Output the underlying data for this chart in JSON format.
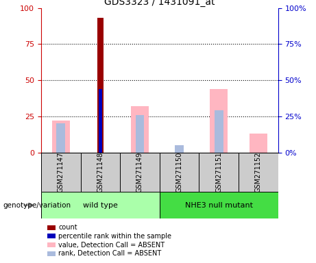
{
  "title": "GDS3323 / 1431091_at",
  "samples": [
    "GSM271147",
    "GSM271148",
    "GSM271149",
    "GSM271150",
    "GSM271151",
    "GSM271152"
  ],
  "count_values": [
    0,
    93,
    0,
    0,
    0,
    0
  ],
  "percentile_rank_values": [
    0,
    44,
    0,
    0,
    0,
    0
  ],
  "absent_value_values": [
    22,
    0,
    32,
    0,
    44,
    13
  ],
  "absent_rank_values": [
    20,
    0,
    26,
    5,
    29,
    0
  ],
  "colors": {
    "count": "#990000",
    "percentile_rank": "#0000BB",
    "absent_value": "#FFB6C1",
    "absent_rank": "#AABBDD"
  },
  "ylim": [
    0,
    100
  ],
  "yticks": [
    0,
    25,
    50,
    75,
    100
  ],
  "left_axis_color": "#CC0000",
  "right_axis_color": "#0000CC",
  "groups": [
    {
      "name": "wild type",
      "start": 0,
      "end": 2,
      "color": "#AAFFAA"
    },
    {
      "name": "NHE3 null mutant",
      "start": 3,
      "end": 5,
      "color": "#44DD44"
    }
  ],
  "legend_items": [
    {
      "label": "count",
      "color": "#990000"
    },
    {
      "label": "percentile rank within the sample",
      "color": "#0000BB"
    },
    {
      "label": "value, Detection Call = ABSENT",
      "color": "#FFB6C1"
    },
    {
      "label": "rank, Detection Call = ABSENT",
      "color": "#AABBDD"
    }
  ],
  "group_label": "genotype/variation"
}
